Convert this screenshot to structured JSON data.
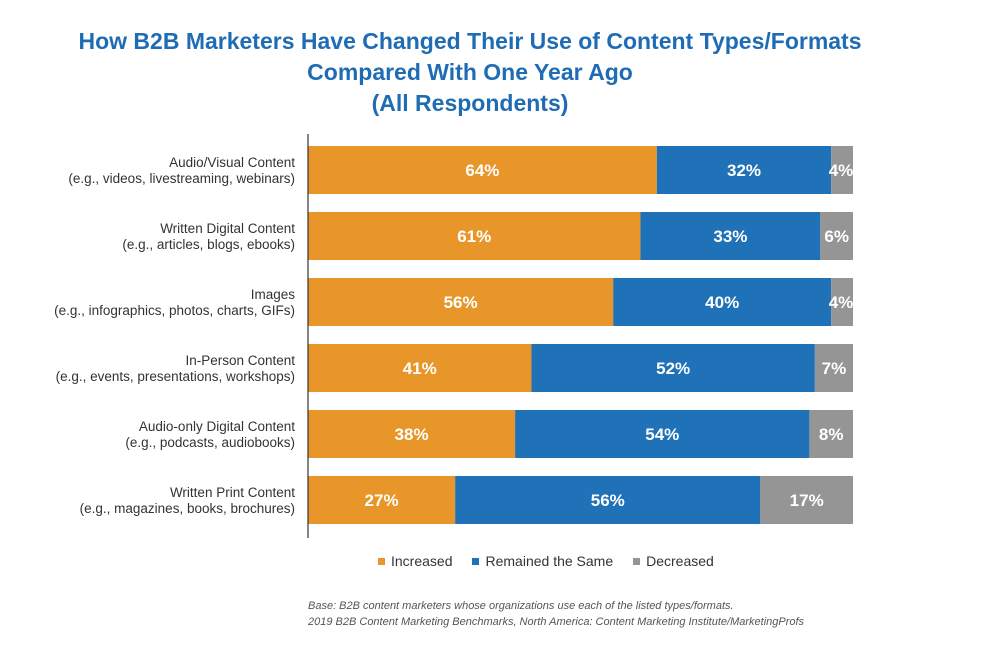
{
  "chart_data": {
    "type": "bar",
    "orientation": "horizontal",
    "stacked": true,
    "title_lines": [
      "How B2B Marketers Have Changed Their Use of Content Types/Formats",
      "Compared With One Year Ago",
      "(All Respondents)"
    ],
    "categories": [
      {
        "line1": "Audio/Visual Content",
        "line2": "(e.g., videos, livestreaming, webinars)"
      },
      {
        "line1": "Written Digital Content",
        "line2": "(e.g., articles, blogs, ebooks)"
      },
      {
        "line1": "Images",
        "line2": "(e.g., infographics, photos, charts, GIFs)"
      },
      {
        "line1": "In-Person Content",
        "line2": "(e.g., events, presentations, workshops)"
      },
      {
        "line1": "Audio-only Digital Content",
        "line2": "(e.g., podcasts, audiobooks)"
      },
      {
        "line1": "Written Print Content",
        "line2": "(e.g., magazines, books, brochures)"
      }
    ],
    "series": [
      {
        "name": "Increased",
        "color": "#e8962a",
        "values": [
          64,
          61,
          56,
          41,
          38,
          27
        ],
        "labels": [
          "64%",
          "61%",
          "56%",
          "41%",
          "38%",
          "27%"
        ]
      },
      {
        "name": "Remained the Same",
        "color": "#1f71b8",
        "values": [
          32,
          33,
          40,
          52,
          54,
          56
        ],
        "labels": [
          "32%",
          "33%",
          "40%",
          "52%",
          "54%",
          "56%"
        ]
      },
      {
        "name": "Decreased",
        "color": "#959595",
        "values": [
          4,
          6,
          4,
          7,
          8,
          17
        ],
        "labels": [
          "4%",
          "6%",
          "4%",
          "7%",
          "8%",
          "17%"
        ]
      }
    ],
    "xlim": [
      0,
      100
    ],
    "grid": false,
    "legend_position": "bottom"
  },
  "footnote": {
    "line1": "Base: B2B content marketers whose organizations use each of the listed types/formats.",
    "line2": "2019 B2B Content Marketing Benchmarks, North America: Content Marketing Institute/MarketingProfs"
  }
}
